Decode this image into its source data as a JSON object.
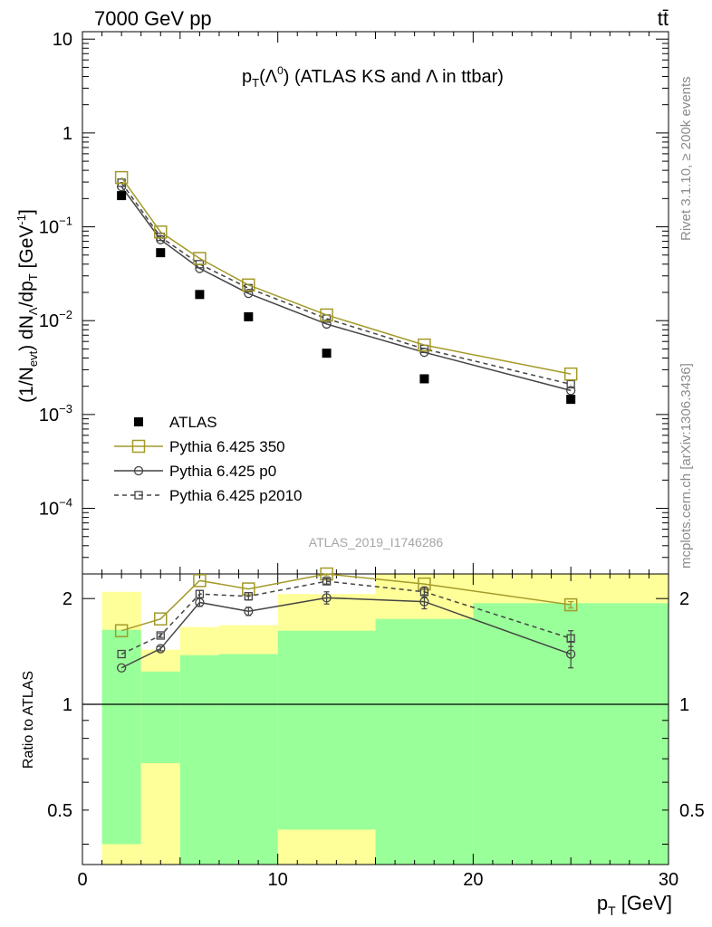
{
  "header": {
    "left": "7000 GeV pp",
    "right": "tt̄"
  },
  "side_labels": {
    "top": "Rivet 3.1.10, ≥ 200k events",
    "bottom": "mcplots.cern.ch [arXiv:1306.3436]"
  },
  "watermark": "ATLAS_2019_I1746286",
  "chart_data": [
    {
      "type": "scatter",
      "panel": "main",
      "title_parts": {
        "p": "p",
        "sub": "T",
        "open": "(Λ",
        "sup": "0",
        "rest": ") (ATLAS KS and Λ in ttbar)"
      },
      "ylabel_parts": {
        "a": "(1/N",
        "a_sub": "evt",
        "b": ") dN",
        "b_sub": "Λ",
        "c": "/dp",
        "c_sub": "T",
        "d": " [GeV",
        "d_sup": "-1",
        "e": "]"
      },
      "yscale": "log",
      "ylim": [
        2e-05,
        12
      ],
      "xlim": [
        0,
        30
      ],
      "y_ticks": [
        {
          "value": 10,
          "base": "10",
          "exp": ""
        },
        {
          "value": 1,
          "base": "1",
          "exp": ""
        },
        {
          "value": 0.1,
          "base": "10",
          "exp": "−1"
        },
        {
          "value": 0.01,
          "base": "10",
          "exp": "−2"
        },
        {
          "value": 0.001,
          "base": "10",
          "exp": "−3"
        },
        {
          "value": 0.0001,
          "base": "10",
          "exp": "−4"
        }
      ],
      "x_bins": [
        [
          1,
          3
        ],
        [
          3,
          5
        ],
        [
          5,
          7
        ],
        [
          7,
          10
        ],
        [
          10,
          15
        ],
        [
          15,
          20
        ],
        [
          20,
          30
        ]
      ],
      "x": [
        2,
        4,
        6,
        8.5,
        12.5,
        17.5,
        25
      ],
      "legend_position": "lower-left",
      "series": [
        {
          "name": "ATLAS",
          "color": "#000000",
          "marker": "filled-square",
          "line": "none",
          "values": [
            0.215,
            0.053,
            0.019,
            0.011,
            0.0045,
            0.0024,
            0.00145
          ]
        },
        {
          "name": "Pythia 6.425 350",
          "color": "#a39a28",
          "marker": "open-square-large",
          "line": "solid",
          "values": [
            0.335,
            0.088,
            0.046,
            0.024,
            0.0115,
            0.0055,
            0.0027
          ]
        },
        {
          "name": "Pythia 6.425 p0",
          "color": "#444444",
          "marker": "open-circle",
          "line": "solid",
          "values": [
            0.268,
            0.073,
            0.036,
            0.0195,
            0.0092,
            0.0046,
            0.0018
          ]
        },
        {
          "name": "Pythia 6.425 p2010",
          "color": "#444444",
          "marker": "open-square-small",
          "line": "dashed",
          "values": [
            0.295,
            0.078,
            0.04,
            0.0222,
            0.0105,
            0.005,
            0.0021
          ]
        }
      ]
    },
    {
      "type": "line",
      "panel": "ratio",
      "ylabel": "Ratio to ATLAS",
      "xlabel_parts": {
        "p": "p",
        "sub": "T",
        "rest": " [GeV]"
      },
      "yscale": "log",
      "ylim": [
        0.35,
        2.35
      ],
      "xlim": [
        0,
        30
      ],
      "y_ticks": [
        0.5,
        1,
        2
      ],
      "x_ticks": [
        0,
        10,
        20,
        30
      ],
      "reference_line": 1,
      "x": [
        2,
        4,
        6,
        8.5,
        12.5,
        17.5,
        25
      ],
      "bands": {
        "green_color": "#99ff99",
        "yellow_color": "#ffff99",
        "bins": [
          {
            "x": [
              1,
              3
            ],
            "green": [
              0.4,
              1.63
            ],
            "yellow": [
              0.35,
              2.09
            ]
          },
          {
            "x": [
              3,
              5
            ],
            "green": [
              0.68,
              1.24
            ],
            "yellow": [
              0.35,
              1.43
            ]
          },
          {
            "x": [
              5,
              7
            ],
            "green": [
              0.35,
              1.38
            ],
            "yellow": [
              0.35,
              1.66
            ]
          },
          {
            "x": [
              7,
              10
            ],
            "green": [
              0.35,
              1.39
            ],
            "yellow": [
              0.35,
              1.68
            ]
          },
          {
            "x": [
              10,
              15
            ],
            "green": [
              0.44,
              1.62
            ],
            "yellow": [
              0.35,
              2.06
            ]
          },
          {
            "x": [
              15,
              20
            ],
            "green": [
              0.35,
              1.75
            ],
            "yellow": [
              0.35,
              2.35
            ]
          },
          {
            "x": [
              20,
              30
            ],
            "green": [
              0.35,
              1.94
            ],
            "yellow": [
              0.35,
              2.35
            ]
          }
        ]
      },
      "series": [
        {
          "name": "Pythia 6.425 350",
          "color": "#a39a28",
          "marker": "open-square-large",
          "line": "solid",
          "values": [
            1.62,
            1.75,
            2.25,
            2.13,
            2.35,
            2.2,
            1.92
          ],
          "errors": [
            0,
            0,
            0,
            0,
            0.03,
            0,
            0.04
          ]
        },
        {
          "name": "Pythia 6.425 p0",
          "color": "#444444",
          "marker": "open-circle",
          "line": "solid",
          "values": [
            1.27,
            1.44,
            1.95,
            1.84,
            2.01,
            1.96,
            1.39
          ],
          "errors": [
            0,
            0.02,
            0.05,
            0.05,
            0.08,
            0.09,
            0.12
          ]
        },
        {
          "name": "Pythia 6.425 p2010",
          "color": "#444444",
          "marker": "open-square-small",
          "line": "dashed",
          "values": [
            1.39,
            1.57,
            2.06,
            2.03,
            2.24,
            2.09,
            1.54
          ],
          "errors": [
            0,
            0.02,
            0.05,
            0.05,
            0.04,
            0.07,
            0.08
          ]
        }
      ]
    }
  ]
}
